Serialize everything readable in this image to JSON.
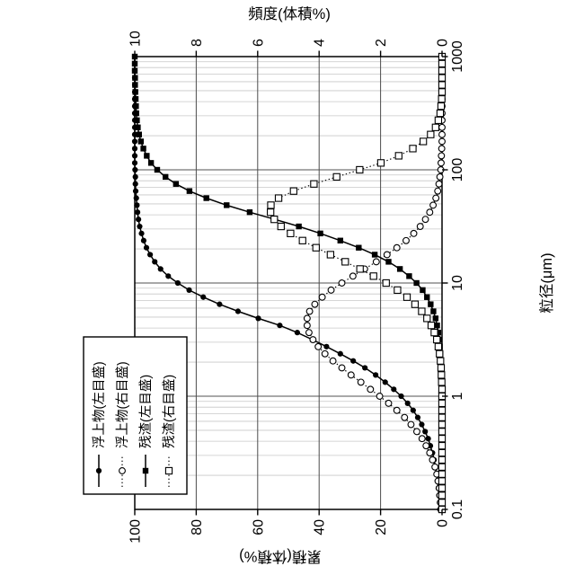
{
  "chart_data": {
    "type": "line",
    "rendered_rotation_deg": -90,
    "x_axis": {
      "label": "粒径(μm)",
      "scale": "log",
      "min": 0.1,
      "max": 1000,
      "tick_labels": [
        "0.1",
        "1",
        "10",
        "100",
        "1000"
      ]
    },
    "y_left_axis": {
      "label": "累積(体積%)",
      "min": 0,
      "max": 100,
      "tick_labels": [
        "0",
        "20",
        "40",
        "60",
        "80",
        "100"
      ]
    },
    "y_right_axis": {
      "label": "頻度(体積%)",
      "min": 0,
      "max": 10,
      "tick_labels": [
        "0",
        "2",
        "4",
        "6",
        "8",
        "10"
      ]
    },
    "grid": {
      "x_minor_log": true,
      "y_major_step": 20
    },
    "legend_position": "top-left-of-plot",
    "sizes_um": [
      0.1,
      0.115,
      0.133,
      0.154,
      0.178,
      0.205,
      0.237,
      0.274,
      0.316,
      0.365,
      0.422,
      0.487,
      0.562,
      0.649,
      0.75,
      0.866,
      1,
      1.15,
      1.33,
      1.54,
      1.78,
      2.05,
      2.37,
      2.74,
      3.16,
      3.65,
      4.22,
      4.87,
      5.62,
      6.49,
      7.5,
      8.66,
      10,
      11.5,
      13.3,
      15.4,
      17.8,
      20.5,
      23.7,
      27.4,
      31.6,
      36.5,
      42.2,
      48.7,
      56.2,
      64.9,
      75,
      86.6,
      100,
      115,
      133,
      154,
      178,
      205,
      237,
      274,
      316,
      365,
      422,
      487,
      562,
      649,
      750,
      866,
      1000
    ],
    "series": [
      {
        "name": "浮上物(左目盛)",
        "axis": "left",
        "line": "solid",
        "marker": "filled-circle",
        "values": [
          0.7,
          0.8,
          1.0,
          1.2,
          1.5,
          1.8,
          2.1,
          2.6,
          3.1,
          3.8,
          4.5,
          5.5,
          6.6,
          7.9,
          9.4,
          11.2,
          13.3,
          15.7,
          18.5,
          21.6,
          25.1,
          28.9,
          33.1,
          37.6,
          42.2,
          47.1,
          52.8,
          59.8,
          66.4,
          72.4,
          77.7,
          82.3,
          86.0,
          89.1,
          91.6,
          93.5,
          95.0,
          96.2,
          97.1,
          97.8,
          98.4,
          98.8,
          99.1,
          99.3,
          99.5,
          99.7,
          99.8,
          99.8,
          99.9,
          100,
          100,
          100,
          100,
          100,
          100,
          100,
          100,
          100,
          100,
          100,
          100,
          100,
          100,
          100,
          100
        ]
      },
      {
        "name": "浮上物(右目盛)",
        "axis": "right",
        "line": "dotted",
        "marker": "open-circle",
        "values": [
          0.03,
          0.05,
          0.07,
          0.09,
          0.13,
          0.17,
          0.23,
          0.31,
          0.4,
          0.52,
          0.65,
          0.82,
          1.01,
          1.22,
          1.47,
          1.74,
          2.03,
          2.33,
          2.64,
          2.96,
          3.26,
          3.55,
          3.81,
          4.03,
          4.2,
          4.33,
          4.39,
          4.39,
          4.31,
          4.14,
          3.9,
          3.61,
          3.26,
          2.9,
          2.52,
          2.14,
          1.79,
          1.47,
          1.17,
          0.92,
          0.71,
          0.54,
          0.4,
          0.29,
          0.2,
          0.14,
          0.1,
          0.07,
          0.04,
          0.03,
          0.02,
          0.01,
          0,
          0,
          0,
          0,
          0,
          0,
          0,
          0,
          0,
          0,
          0,
          0,
          0
        ]
      },
      {
        "name": "残渣(左目盛)",
        "axis": "left",
        "line": "solid",
        "marker": "filled-square",
        "values": [
          0,
          0,
          0,
          0,
          0,
          0,
          0,
          0,
          0,
          0,
          0,
          0,
          0,
          0,
          0.1,
          0.1,
          0.1,
          0.1,
          0.2,
          0.2,
          0.3,
          0.4,
          0.5,
          0.7,
          0.9,
          1.2,
          1.6,
          2.1,
          2.8,
          3.7,
          4.9,
          6.3,
          8.3,
          10.7,
          13.7,
          17.4,
          21.9,
          27.1,
          33.1,
          39.6,
          46.6,
          54.4,
          62.6,
          70.1,
          76.7,
          82.2,
          86.6,
          90.0,
          92.7,
          94.7,
          96.1,
          97.2,
          98.0,
          98.6,
          99.0,
          99.3,
          99.5,
          99.6,
          99.7,
          99.8,
          99.9,
          99.9,
          100,
          100,
          100
        ]
      },
      {
        "name": "残渣(右目盛)",
        "axis": "right",
        "line": "dotted",
        "marker": "open-square",
        "values": [
          0,
          0,
          0,
          0,
          0,
          0,
          0,
          0,
          0,
          0,
          0,
          0,
          0,
          0,
          0,
          0,
          0,
          0,
          0.01,
          0.02,
          0.03,
          0.05,
          0.08,
          0.12,
          0.17,
          0.25,
          0.35,
          0.49,
          0.66,
          0.88,
          1.14,
          1.45,
          1.82,
          2.23,
          2.67,
          3.15,
          3.63,
          4.1,
          4.54,
          4.93,
          5.24,
          5.46,
          5.58,
          5.57,
          5.32,
          4.83,
          4.17,
          3.43,
          2.68,
          1.99,
          1.41,
          0.95,
          0.61,
          0.37,
          0.21,
          0.12,
          0.06,
          0.03,
          0.01,
          0,
          0,
          0,
          0,
          0,
          0
        ]
      }
    ]
  },
  "colors": {
    "foreground": "#000000",
    "background": "#ffffff",
    "grid_minor": "#c8c8c8",
    "grid_decade": "#9b9b9b",
    "grid_level": "#4d4d4d"
  }
}
